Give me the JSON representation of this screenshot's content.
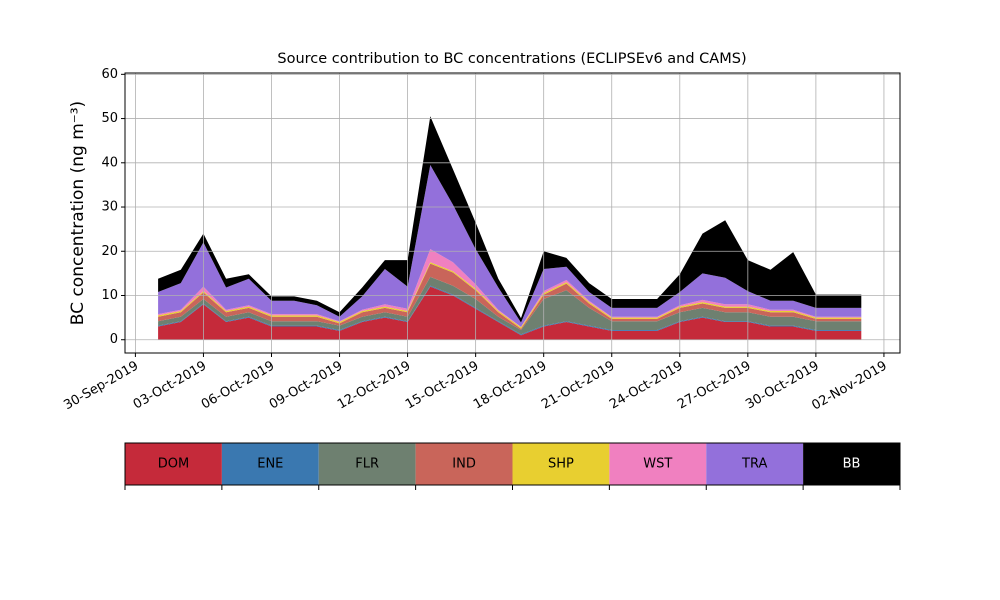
{
  "chart_data": {
    "type": "stacked_area",
    "title": "Source contribution to BC concentrations (ECLIPSEv6 and CAMS)",
    "y_label": "BC concentration (ng m⁻³)",
    "x": [
      "2019-10-01",
      "2019-10-02",
      "2019-10-03",
      "2019-10-04",
      "2019-10-05",
      "2019-10-06",
      "2019-10-07",
      "2019-10-08",
      "2019-10-09",
      "2019-10-10",
      "2019-10-11",
      "2019-10-12",
      "2019-10-13",
      "2019-10-14",
      "2019-10-15",
      "2019-10-16",
      "2019-10-17",
      "2019-10-18",
      "2019-10-19",
      "2019-10-20",
      "2019-10-21",
      "2019-10-22",
      "2019-10-23",
      "2019-10-24",
      "2019-10-25",
      "2019-10-26",
      "2019-10-27",
      "2019-10-28",
      "2019-10-29",
      "2019-10-30",
      "2019-10-31",
      "2019-11-01"
    ],
    "series": [
      {
        "name": "DOM",
        "color": "#c52a3a",
        "values": [
          3,
          4,
          8,
          4,
          5,
          3,
          3,
          3,
          2,
          4,
          5,
          4,
          12,
          10,
          7,
          4,
          1,
          3,
          4,
          3,
          2,
          2,
          2,
          4,
          5,
          4,
          4,
          3,
          3,
          2,
          2,
          2
        ]
      },
      {
        "name": "ENE",
        "color": "#3a78b0",
        "values": [
          0.2,
          0.2,
          0.2,
          0.2,
          0.2,
          0.2,
          0.2,
          0.2,
          0.2,
          0.2,
          0.2,
          0.2,
          0.2,
          0.2,
          0.2,
          0.2,
          0.2,
          0.2,
          0.2,
          0.2,
          0.2,
          0.2,
          0.2,
          0.2,
          0.2,
          0.2,
          0.2,
          0.2,
          0.2,
          0.2,
          0.2,
          0.2
        ]
      },
      {
        "name": "FLR",
        "color": "#6e8070",
        "values": [
          1,
          1,
          1,
          1,
          1,
          1,
          1,
          1,
          1,
          1,
          1,
          1,
          2,
          2,
          2,
          1,
          1,
          6,
          7,
          4,
          2,
          2,
          2,
          2,
          2,
          2,
          2,
          2,
          2,
          2,
          2,
          2
        ]
      },
      {
        "name": "IND",
        "color": "#c9655a",
        "values": [
          1,
          1,
          1.5,
          1,
          1,
          1,
          1,
          1,
          0.5,
          1,
          1,
          1,
          3,
          3,
          2,
          1,
          0.3,
          1,
          1.5,
          1,
          0.5,
          0.5,
          0.5,
          1,
          1,
          1,
          1,
          1,
          1,
          0.5,
          0.5,
          0.5
        ]
      },
      {
        "name": "SHP",
        "color": "#e8cf30",
        "values": [
          0.3,
          0.3,
          0.3,
          0.3,
          0.3,
          0.3,
          0.3,
          0.3,
          0.3,
          0.3,
          0.3,
          0.3,
          0.3,
          0.3,
          0.3,
          0.3,
          0.3,
          0.3,
          0.3,
          0.3,
          0.3,
          0.3,
          0.3,
          0.3,
          0.3,
          0.3,
          0.3,
          0.3,
          0.3,
          0.3,
          0.3,
          0.3
        ]
      },
      {
        "name": "WST",
        "color": "#f080c0",
        "values": [
          0.3,
          0.3,
          1,
          0.3,
          0.3,
          0.3,
          0.3,
          0.3,
          0.2,
          0.3,
          0.5,
          0.5,
          3,
          2,
          1,
          0.3,
          0.1,
          0.5,
          0.5,
          0.3,
          0.2,
          0.2,
          0.2,
          0.3,
          0.5,
          0.5,
          0.5,
          0.3,
          0.3,
          0.2,
          0.2,
          0.2
        ]
      },
      {
        "name": "TRA",
        "color": "#9370db",
        "values": [
          5,
          6,
          10,
          5,
          6,
          3,
          3,
          2,
          1,
          3,
          8,
          5,
          19,
          13,
          8,
          5,
          1,
          5,
          3,
          2,
          2,
          2,
          2,
          3,
          6,
          6,
          3,
          2,
          2,
          2,
          2,
          2
        ]
      },
      {
        "name": "BB",
        "color": "#000000",
        "values": [
          3,
          3,
          2,
          2,
          1,
          1,
          1,
          1,
          1,
          2,
          2,
          6,
          11,
          8,
          6,
          2,
          1,
          4,
          2,
          2,
          2,
          2,
          2,
          4,
          9,
          13,
          7,
          7,
          11,
          3,
          3,
          3
        ]
      }
    ],
    "xlim": [
      "2019-09-29T13:00",
      "2019-11-02T17:00"
    ],
    "xticks": [
      {
        "value": "2019-09-30",
        "label": "30-Sep-2019"
      },
      {
        "value": "2019-10-03",
        "label": "03-Oct-2019"
      },
      {
        "value": "2019-10-06",
        "label": "06-Oct-2019"
      },
      {
        "value": "2019-10-09",
        "label": "09-Oct-2019"
      },
      {
        "value": "2019-10-12",
        "label": "12-Oct-2019"
      },
      {
        "value": "2019-10-15",
        "label": "15-Oct-2019"
      },
      {
        "value": "2019-10-18",
        "label": "18-Oct-2019"
      },
      {
        "value": "2019-10-21",
        "label": "21-Oct-2019"
      },
      {
        "value": "2019-10-24",
        "label": "24-Oct-2019"
      },
      {
        "value": "2019-10-27",
        "label": "27-Oct-2019"
      },
      {
        "value": "2019-10-30",
        "label": "30-Oct-2019"
      },
      {
        "value": "2019-11-02",
        "label": "02-Nov-2019"
      }
    ],
    "ylim": [
      -3,
      60.3
    ],
    "yticks": [
      0,
      10,
      20,
      30,
      40,
      50,
      60
    ],
    "grid": true,
    "legend": "below"
  }
}
